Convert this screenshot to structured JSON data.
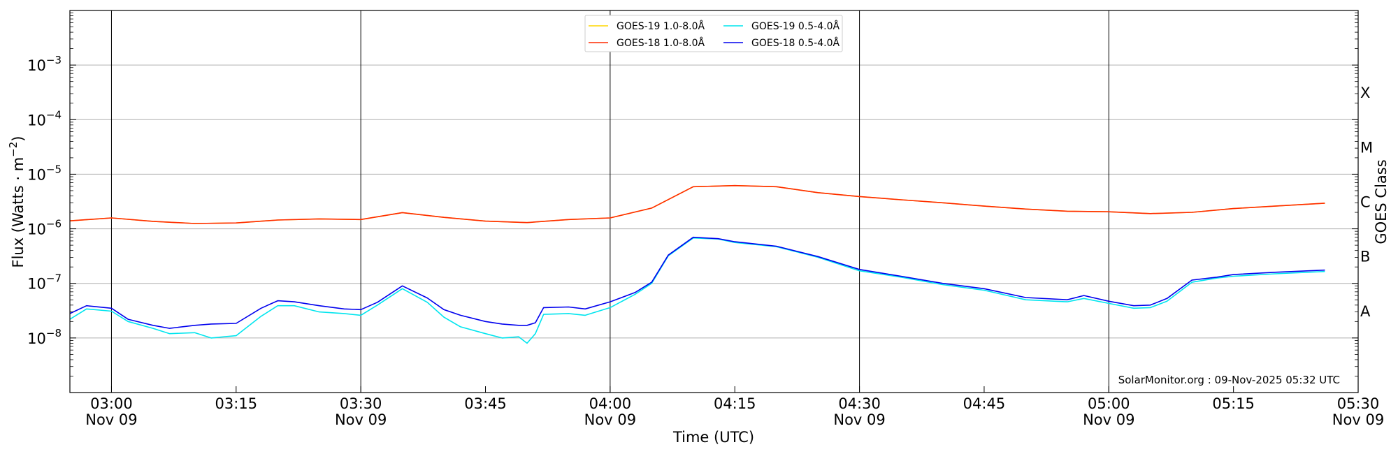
{
  "chart_data": {
    "type": "line",
    "ylabel_main": "Flux (Watts · m",
    "ylabel_exp": "−2",
    "ylabel_close": ")",
    "xlabel": "Time (UTC)",
    "y2label": "GOES Class",
    "yscale": "log",
    "ylim": [
      1e-09,
      0.01
    ],
    "xlim": [
      "02:55",
      "05:30"
    ],
    "grid": "horizontal",
    "legend_position": "top-center",
    "credit": "SolarMonitor.org : 09-Nov-2025 05:32 UTC",
    "y_ticks": [
      {
        "exp": -8,
        "base": "10",
        "sup": "−8"
      },
      {
        "exp": -7,
        "base": "10",
        "sup": "−7"
      },
      {
        "exp": -6,
        "base": "10",
        "sup": "−6"
      },
      {
        "exp": -5,
        "base": "10",
        "sup": "−5"
      },
      {
        "exp": -4,
        "base": "10",
        "sup": "−4"
      },
      {
        "exp": -3,
        "base": "10",
        "sup": "−3"
      }
    ],
    "x_ticks": [
      {
        "time": "03:00",
        "date": "Nov 09"
      },
      {
        "time": "03:15",
        "date": ""
      },
      {
        "time": "03:30",
        "date": "Nov 09"
      },
      {
        "time": "03:45",
        "date": ""
      },
      {
        "time": "04:00",
        "date": "Nov 09"
      },
      {
        "time": "04:15",
        "date": ""
      },
      {
        "time": "04:30",
        "date": "Nov 09"
      },
      {
        "time": "04:45",
        "date": ""
      },
      {
        "time": "05:00",
        "date": "Nov 09"
      },
      {
        "time": "05:15",
        "date": ""
      },
      {
        "time": "05:30",
        "date": "Nov 09"
      }
    ],
    "vertical_lines": [
      "03:00",
      "03:30",
      "04:00",
      "04:30",
      "05:00",
      "05:30"
    ],
    "goes_classes": [
      {
        "label": "A",
        "exp": -7.5
      },
      {
        "label": "B",
        "exp": -6.5
      },
      {
        "label": "C",
        "exp": -5.5
      },
      {
        "label": "M",
        "exp": -4.5
      },
      {
        "label": "X",
        "exp": -3.5
      }
    ],
    "series": [
      {
        "name": "GOES-19 1.0-8.0Å",
        "color": "#ffd700",
        "x": [
          "02:55",
          "03:00",
          "03:05",
          "03:10",
          "03:15",
          "03:20",
          "03:25",
          "03:30",
          "03:35",
          "03:40",
          "03:45",
          "03:50",
          "03:55",
          "04:00",
          "04:05",
          "04:10",
          "04:15",
          "04:20",
          "04:25",
          "04:30",
          "04:35",
          "04:40",
          "04:45",
          "04:50",
          "04:55",
          "05:00",
          "05:05",
          "05:10",
          "05:15",
          "05:20",
          "05:26"
        ],
        "y": [
          1.4e-06,
          1.58e-06,
          1.37e-06,
          1.25e-06,
          1.28e-06,
          1.45e-06,
          1.52e-06,
          1.48e-06,
          1.98e-06,
          1.62e-06,
          1.38e-06,
          1.3e-06,
          1.48e-06,
          1.58e-06,
          2.4e-06,
          5.9e-06,
          6.2e-06,
          5.9e-06,
          4.6e-06,
          3.9e-06,
          3.4e-06,
          3e-06,
          2.6e-06,
          2.3e-06,
          2.1e-06,
          2.05e-06,
          1.9e-06,
          2e-06,
          2.35e-06,
          2.6e-06,
          2.95e-06
        ]
      },
      {
        "name": "GOES-18 1.0-8.0Å",
        "color": "#ff2a00",
        "x": [
          "02:55",
          "03:00",
          "03:05",
          "03:10",
          "03:15",
          "03:20",
          "03:25",
          "03:30",
          "03:35",
          "03:40",
          "03:45",
          "03:50",
          "03:55",
          "04:00",
          "04:05",
          "04:10",
          "04:15",
          "04:20",
          "04:25",
          "04:30",
          "04:35",
          "04:40",
          "04:45",
          "04:50",
          "04:55",
          "05:00",
          "05:05",
          "05:10",
          "05:15",
          "05:20",
          "05:26"
        ],
        "y": [
          1.4e-06,
          1.58e-06,
          1.37e-06,
          1.25e-06,
          1.28e-06,
          1.45e-06,
          1.52e-06,
          1.48e-06,
          1.98e-06,
          1.62e-06,
          1.38e-06,
          1.3e-06,
          1.48e-06,
          1.58e-06,
          2.4e-06,
          5.9e-06,
          6.2e-06,
          5.9e-06,
          4.6e-06,
          3.9e-06,
          3.4e-06,
          3e-06,
          2.6e-06,
          2.3e-06,
          2.1e-06,
          2.05e-06,
          1.9e-06,
          2e-06,
          2.35e-06,
          2.6e-06,
          2.95e-06
        ]
      },
      {
        "name": "GOES-19 0.5-4.0Å",
        "color": "#00e5ee",
        "x": [
          "02:55",
          "02:57",
          "03:00",
          "03:02",
          "03:05",
          "03:07",
          "03:10",
          "03:12",
          "03:15",
          "03:18",
          "03:20",
          "03:22",
          "03:25",
          "03:28",
          "03:30",
          "03:32",
          "03:35",
          "03:38",
          "03:40",
          "03:42",
          "03:45",
          "03:47",
          "03:49",
          "03:50",
          "03:51",
          "03:52",
          "03:55",
          "03:57",
          "04:00",
          "04:03",
          "04:05",
          "04:07",
          "04:10",
          "04:13",
          "04:15",
          "04:20",
          "04:25",
          "04:30",
          "04:35",
          "04:40",
          "04:45",
          "04:50",
          "04:55",
          "04:57",
          "05:00",
          "05:03",
          "05:05",
          "05:07",
          "05:10",
          "05:13",
          "05:15",
          "05:20",
          "05:26"
        ],
        "y": [
          2.2e-08,
          3.4e-08,
          3.1e-08,
          2e-08,
          1.5e-08,
          1.2e-08,
          1.25e-08,
          1e-08,
          1.1e-08,
          2.5e-08,
          3.9e-08,
          3.9e-08,
          3e-08,
          2.8e-08,
          2.6e-08,
          4e-08,
          8e-08,
          4.5e-08,
          2.4e-08,
          1.6e-08,
          1.2e-08,
          1e-08,
          1.05e-08,
          8e-09,
          1.2e-08,
          2.7e-08,
          2.8e-08,
          2.6e-08,
          3.6e-08,
          6.3e-08,
          1e-07,
          3.2e-07,
          6.8e-07,
          6.5e-07,
          5.6e-07,
          4.7e-07,
          3e-07,
          1.7e-07,
          1.3e-07,
          9.5e-08,
          7.5e-08,
          5e-08,
          4.6e-08,
          5.3e-08,
          4.3e-08,
          3.5e-08,
          3.6e-08,
          4.7e-08,
          1.05e-07,
          1.25e-07,
          1.35e-07,
          1.5e-07,
          1.65e-07
        ]
      },
      {
        "name": "GOES-18 0.5-4.0Å",
        "color": "#0000ee",
        "x": [
          "02:55",
          "02:57",
          "03:00",
          "03:02",
          "03:05",
          "03:07",
          "03:10",
          "03:12",
          "03:15",
          "03:18",
          "03:20",
          "03:22",
          "03:25",
          "03:28",
          "03:30",
          "03:32",
          "03:35",
          "03:38",
          "03:40",
          "03:42",
          "03:45",
          "03:47",
          "03:49",
          "03:50",
          "03:51",
          "03:52",
          "03:55",
          "03:57",
          "04:00",
          "04:03",
          "04:05",
          "04:07",
          "04:10",
          "04:13",
          "04:15",
          "04:20",
          "04:25",
          "04:30",
          "04:35",
          "04:40",
          "04:45",
          "04:50",
          "04:55",
          "04:57",
          "05:00",
          "05:03",
          "05:05",
          "05:07",
          "05:10",
          "05:13",
          "05:15",
          "05:20",
          "05:26"
        ],
        "y": [
          2.8e-08,
          3.9e-08,
          3.5e-08,
          2.2e-08,
          1.7e-08,
          1.5e-08,
          1.7e-08,
          1.8e-08,
          1.85e-08,
          3.5e-08,
          4.8e-08,
          4.6e-08,
          3.9e-08,
          3.4e-08,
          3.3e-08,
          4.5e-08,
          9e-08,
          5.4e-08,
          3.3e-08,
          2.6e-08,
          2e-08,
          1.8e-08,
          1.7e-08,
          1.7e-08,
          1.9e-08,
          3.6e-08,
          3.7e-08,
          3.4e-08,
          4.6e-08,
          6.8e-08,
          1.05e-07,
          3.3e-07,
          7e-07,
          6.6e-07,
          5.8e-07,
          4.8e-07,
          3.1e-07,
          1.8e-07,
          1.35e-07,
          1e-07,
          8e-08,
          5.5e-08,
          5e-08,
          6e-08,
          4.7e-08,
          3.9e-08,
          4e-08,
          5.3e-08,
          1.15e-07,
          1.3e-07,
          1.45e-07,
          1.6e-07,
          1.75e-07
        ]
      }
    ]
  }
}
